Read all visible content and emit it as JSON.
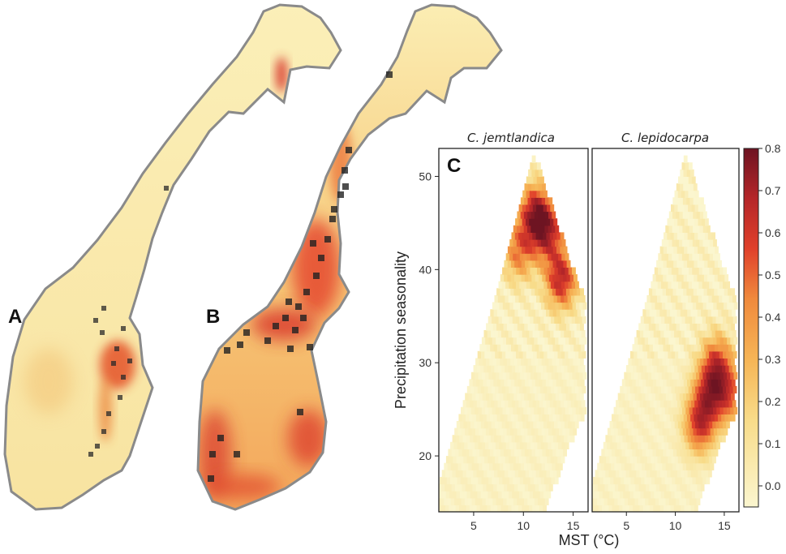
{
  "panels": {
    "a": {
      "letter": "A"
    },
    "b": {
      "letter": "B"
    },
    "c": {
      "letter": "C"
    }
  },
  "colors": {
    "low": "#fbf3c2",
    "mid": "#f5a33c",
    "high": "#e0322a",
    "max": "#7d1622",
    "coast": "#8a8a8a",
    "occurrence": "#222222"
  },
  "chart_data": {
    "type": "heatmap",
    "facets": [
      "C. jemtlandica",
      "C. lepidocarpa"
    ],
    "xlabel": "MST (°C)",
    "ylabel": "Precipitation seasonality",
    "xlim": [
      1.5,
      16.5
    ],
    "ylim": [
      14,
      53
    ],
    "x_ticks": [
      "5",
      "10",
      "15"
    ],
    "y_ticks": [
      "20",
      "30",
      "40",
      "50"
    ],
    "colorbar": {
      "ticks": [
        "0.0",
        "0.1",
        "0.2",
        "0.3",
        "0.4",
        "0.5",
        "0.6",
        "0.7",
        "0.8"
      ],
      "min": -0.05,
      "max": 0.8
    },
    "hotspots": [
      {
        "facet": "C. jemtlandica",
        "regions": [
          {
            "x": 11.2,
            "y": 46,
            "value": 0.65
          },
          {
            "x": 13.8,
            "y": 39,
            "value": 0.6
          },
          {
            "x": 9.5,
            "y": 42,
            "value": 0.4
          },
          {
            "x": 12.5,
            "y": 44,
            "value": 0.5
          }
        ]
      },
      {
        "facet": "C. lepidocarpa",
        "regions": [
          {
            "x": 14.3,
            "y": 30,
            "value": 0.45
          },
          {
            "x": 12.5,
            "y": 23.5,
            "value": 0.55
          },
          {
            "x": 15.5,
            "y": 26.5,
            "value": 0.4
          },
          {
            "x": 13.5,
            "y": 27,
            "value": 0.45
          }
        ]
      }
    ]
  }
}
